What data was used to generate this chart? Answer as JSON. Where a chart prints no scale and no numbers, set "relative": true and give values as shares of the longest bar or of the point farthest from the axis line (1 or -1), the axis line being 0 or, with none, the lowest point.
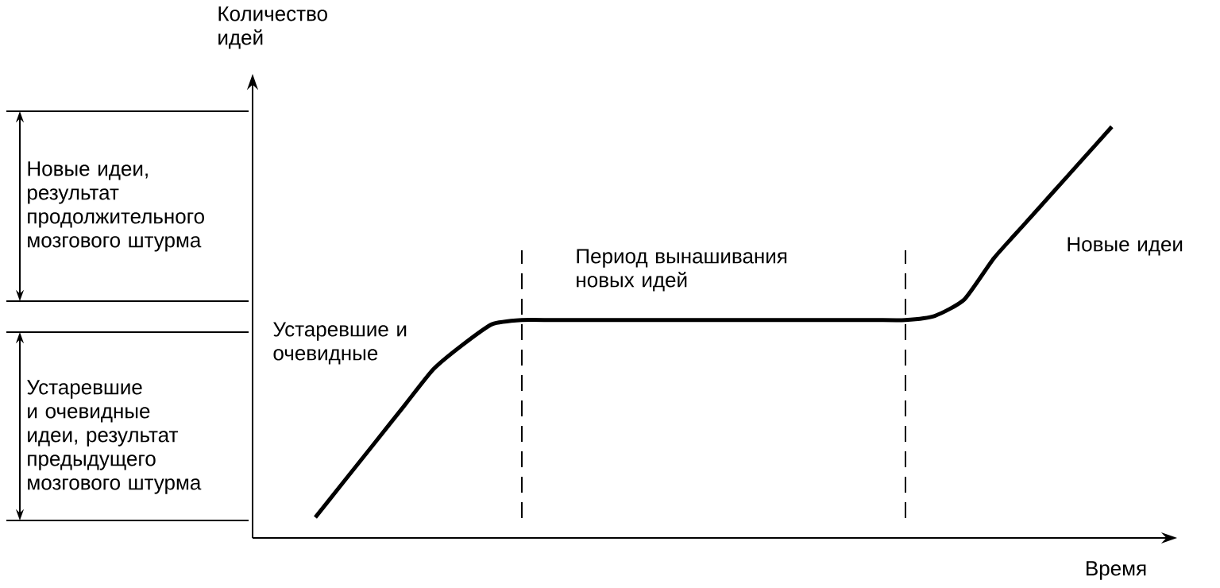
{
  "chart_data": {
    "type": "line",
    "relative": true,
    "xlabel": "Время",
    "ylabel": "Количество идей",
    "categories": [
      null,
      null,
      null,
      null,
      null,
      null,
      null,
      null,
      null,
      null,
      null,
      null,
      null,
      null,
      null,
      null,
      null,
      null,
      null,
      null,
      null,
      null,
      null,
      null,
      null,
      null,
      null,
      null
    ],
    "series": [
      {
        "color": "#000000",
        "values": [
          0.05,
          0.14,
          0.23,
          0.32,
          0.41,
          0.47,
          0.52,
          0.53,
          0.53,
          0.53,
          0.53,
          0.53,
          0.53,
          0.53,
          0.53,
          0.53,
          0.53,
          0.53,
          0.53,
          0.53,
          0.53,
          0.54,
          0.58,
          0.68,
          0.76,
          0.84,
          0.92,
          1.0
        ]
      }
    ],
    "marker": "none",
    "line_style": "solid",
    "tick_labels": false,
    "annotations": [
      "Новые идеи, результат продолжительного мозгового штурма",
      "Устаревшие и очевидные идеи, результат предыдущего мозгового штурма",
      "Устаревшие и очевидные",
      "Период вынашивания новых идей",
      "Новые идеи"
    ]
  }
}
